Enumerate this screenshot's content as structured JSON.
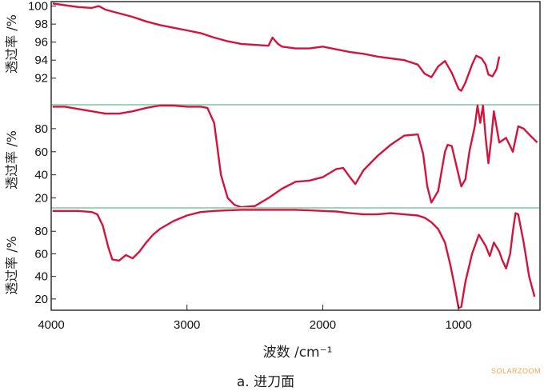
{
  "chart_data": [
    {
      "type": "line",
      "ylabel": "透过率 /%",
      "yticks": [
        92,
        94,
        96,
        98,
        100
      ],
      "ylim": [
        90.2,
        100.5
      ],
      "xlim": [
        4000,
        400
      ],
      "series": [
        {
          "color": "#d4143c",
          "x": [
            3990,
            3900,
            3800,
            3700,
            3650,
            3600,
            3500,
            3400,
            3300,
            3200,
            3100,
            3000,
            2900,
            2800,
            2700,
            2600,
            2500,
            2400,
            2370,
            2330,
            2300,
            2200,
            2100,
            2000,
            1900,
            1800,
            1700,
            1600,
            1500,
            1400,
            1300,
            1250,
            1200,
            1150,
            1100,
            1050,
            1000,
            980,
            950,
            900,
            870,
            830,
            800,
            780,
            750,
            720,
            700
          ],
          "y": [
            100.3,
            100.1,
            99.9,
            99.8,
            100.0,
            99.6,
            99.2,
            98.8,
            98.3,
            97.9,
            97.6,
            97.3,
            97.0,
            96.5,
            96.1,
            95.8,
            95.7,
            95.6,
            96.5,
            95.8,
            95.5,
            95.3,
            95.3,
            95.5,
            95.2,
            94.9,
            94.7,
            94.4,
            94.2,
            94.0,
            93.5,
            92.5,
            92.1,
            93.3,
            93.9,
            92.6,
            90.8,
            90.6,
            91.5,
            93.5,
            94.5,
            94.2,
            93.5,
            92.4,
            92.2,
            93.0,
            94.4
          ]
        }
      ]
    },
    {
      "type": "line",
      "ylabel": "透过率 /%",
      "yticks": [
        20,
        40,
        60,
        80
      ],
      "ylim": [
        10,
        100
      ],
      "xlim": [
        4000,
        400
      ],
      "series": [
        {
          "color": "#d4143c",
          "x": [
            3990,
            3900,
            3800,
            3700,
            3600,
            3500,
            3400,
            3300,
            3200,
            3100,
            3000,
            2900,
            2850,
            2800,
            2750,
            2700,
            2650,
            2600,
            2500,
            2400,
            2300,
            2200,
            2100,
            2000,
            1900,
            1850,
            1800,
            1760,
            1700,
            1600,
            1500,
            1400,
            1300,
            1260,
            1230,
            1200,
            1150,
            1100,
            1080,
            1050,
            1000,
            980,
            950,
            920,
            880,
            860,
            840,
            820,
            800,
            780,
            760,
            740,
            700,
            650,
            600,
            560,
            520,
            480,
            420
          ],
          "y": [
            99,
            99,
            97,
            95,
            93,
            93,
            95,
            98,
            100,
            100,
            99,
            99,
            98,
            85,
            40,
            20,
            14,
            12,
            13,
            20,
            28,
            34,
            35,
            38,
            45,
            46,
            38,
            32,
            44,
            56,
            66,
            74,
            75,
            58,
            30,
            16,
            26,
            60,
            66,
            65,
            40,
            30,
            36,
            60,
            82,
            100,
            85,
            100,
            72,
            50,
            70,
            95,
            68,
            72,
            60,
            82,
            80,
            75,
            68
          ]
        }
      ]
    },
    {
      "type": "line",
      "ylabel": "透过率 /%",
      "yticks": [
        20,
        40,
        60,
        80
      ],
      "ylim": [
        10,
        100
      ],
      "xlim": [
        4000,
        400
      ],
      "xticks": [
        4000,
        3000,
        2000,
        1000
      ],
      "xlabel": "波数 /cm⁻¹",
      "series": [
        {
          "color": "#d4143c",
          "x": [
            3990,
            3900,
            3800,
            3700,
            3660,
            3620,
            3580,
            3550,
            3500,
            3450,
            3400,
            3350,
            3300,
            3250,
            3200,
            3100,
            3000,
            2900,
            2800,
            2700,
            2600,
            2500,
            2400,
            2300,
            2200,
            2100,
            2000,
            1900,
            1800,
            1700,
            1600,
            1500,
            1400,
            1300,
            1250,
            1200,
            1150,
            1100,
            1060,
            1030,
            1000,
            980,
            950,
            900,
            850,
            800,
            770,
            740,
            700,
            680,
            650,
            620,
            600,
            580,
            560,
            520,
            480,
            440
          ],
          "y": [
            98,
            98,
            98,
            97,
            95,
            85,
            66,
            55,
            54,
            59,
            56,
            62,
            70,
            77,
            82,
            89,
            94,
            97,
            98,
            98.5,
            99,
            99,
            99,
            99,
            99,
            98.5,
            98,
            97.5,
            96,
            95,
            95,
            96,
            95,
            94,
            92,
            88,
            82,
            70,
            50,
            32,
            12,
            13,
            35,
            60,
            77,
            67,
            58,
            70,
            62,
            55,
            47,
            60,
            80,
            96,
            95,
            70,
            40,
            22
          ]
        }
      ]
    }
  ],
  "caption": "a. 进刀面",
  "watermark": "SOLARZOOM",
  "colors": {
    "curve": "#d4143c",
    "baseline": "#9fd4b8"
  }
}
